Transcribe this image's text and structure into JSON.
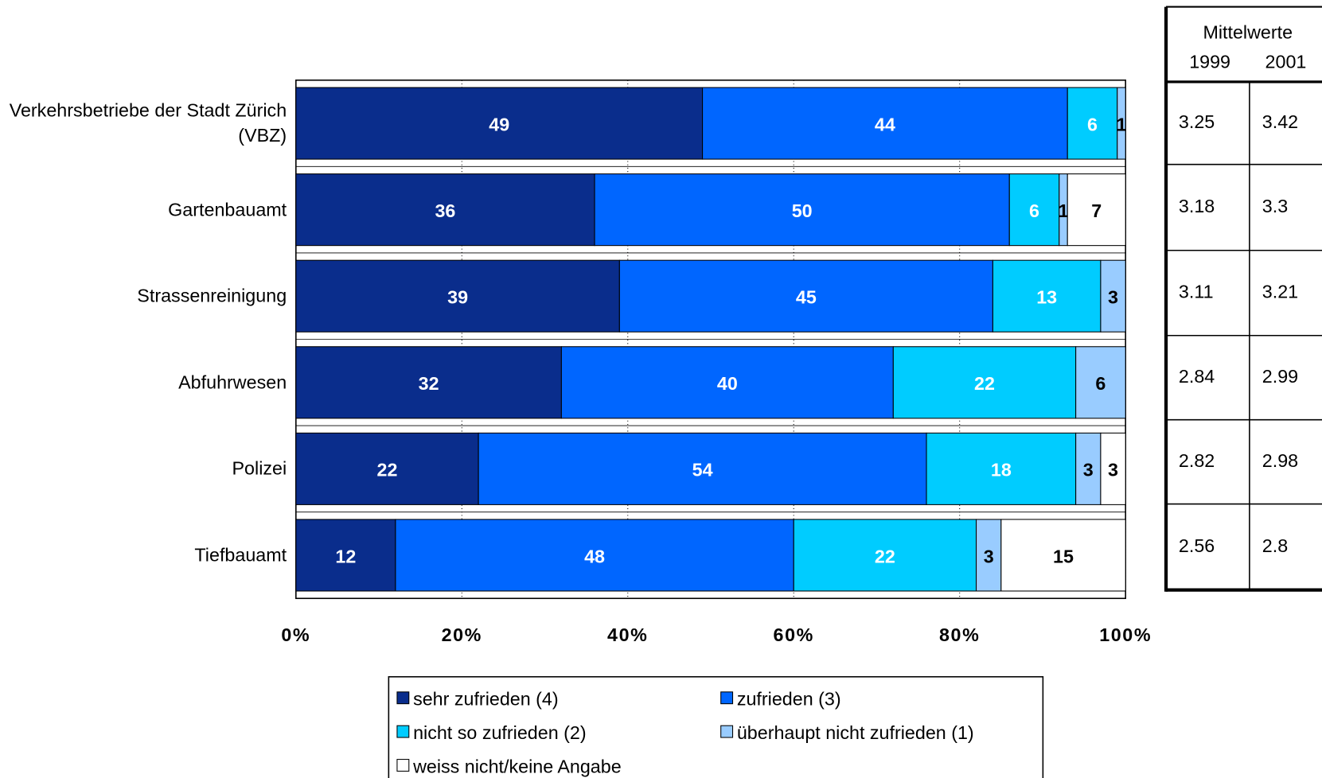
{
  "chart_data": {
    "type": "stacked_barh",
    "categories": [
      "Verkehrsbetriebe der Stadt Zürich (VBZ)",
      "Gartenbauamt",
      "Strassenreinigung",
      "Abfuhrwesen",
      "Polizei",
      "Tiefbauamt"
    ],
    "series": [
      {
        "name": "sehr zufrieden (4)",
        "color": "#0a2d8c",
        "label_color": "#ffffff",
        "values": [
          49,
          36,
          39,
          32,
          22,
          12
        ]
      },
      {
        "name": "zufrieden (3)",
        "color": "#0066ff",
        "label_color": "#ffffff",
        "values": [
          44,
          50,
          45,
          40,
          54,
          48
        ]
      },
      {
        "name": "nicht so zufrieden (2)",
        "color": "#00ccff",
        "label_color": "#ffffff",
        "values": [
          6,
          6,
          13,
          22,
          18,
          22
        ]
      },
      {
        "name": "überhaupt nicht zufrieden (1)",
        "color": "#99ccff",
        "label_color": "#000000",
        "values": [
          1,
          1,
          3,
          6,
          3,
          3
        ]
      },
      {
        "name": "weiss nicht/keine Angabe",
        "color": "#ffffff",
        "label_color": "#000000",
        "values": [
          null,
          7,
          null,
          null,
          3,
          15
        ]
      }
    ],
    "xlim": [
      0,
      100
    ],
    "xticks": [
      {
        "value": 0,
        "label": "0%"
      },
      {
        "value": 20,
        "label": "20%"
      },
      {
        "value": 40,
        "label": "40%"
      },
      {
        "value": 60,
        "label": "60%"
      },
      {
        "value": 80,
        "label": "80%"
      },
      {
        "value": 100,
        "label": "100%"
      }
    ],
    "grid": true,
    "legend": "bottom"
  },
  "table": {
    "title": "Mittelwerte",
    "columns": [
      "1999",
      "2001"
    ],
    "rows": [
      [
        3.25,
        3.42
      ],
      [
        3.18,
        3.3
      ],
      [
        3.11,
        3.21
      ],
      [
        2.84,
        2.99
      ],
      [
        2.82,
        2.98
      ],
      [
        2.56,
        2.8
      ]
    ]
  }
}
